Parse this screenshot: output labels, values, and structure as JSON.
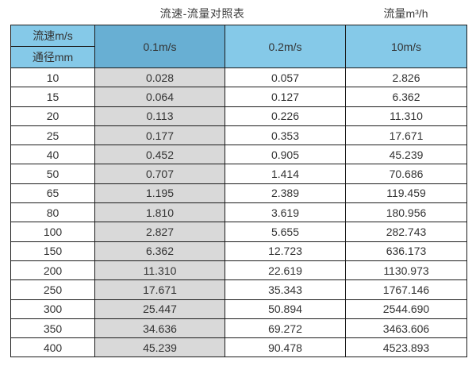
{
  "page": {
    "title": "流速-流量对照表",
    "unit_label": "流量m³/h"
  },
  "table": {
    "header": {
      "velocity_label": "流速m/s",
      "diameter_label": "通径mm",
      "columns": [
        "0.1m/s",
        "0.2m/s",
        "10m/s"
      ]
    },
    "rows": [
      [
        "10",
        "0.028",
        "0.057",
        "2.826"
      ],
      [
        "15",
        "0.064",
        "0.127",
        "6.362"
      ],
      [
        "20",
        "0.113",
        "0.226",
        "11.310"
      ],
      [
        "25",
        "0.177",
        "0.353",
        "17.671"
      ],
      [
        "40",
        "0.452",
        "0.905",
        "45.239"
      ],
      [
        "50",
        "0.707",
        "1.414",
        "70.686"
      ],
      [
        "65",
        "1.195",
        "2.389",
        "119.459"
      ],
      [
        "80",
        "1.810",
        "3.619",
        "180.956"
      ],
      [
        "100",
        "2.827",
        "5.655",
        "282.743"
      ],
      [
        "150",
        "6.362",
        "12.723",
        "636.173"
      ],
      [
        "200",
        "11.310",
        "22.619",
        "1130.973"
      ],
      [
        "250",
        "17.671",
        "35.343",
        "1767.146"
      ],
      [
        "300",
        "25.447",
        "50.894",
        "2544.690"
      ],
      [
        "350",
        "34.636",
        "69.272",
        "3463.606"
      ],
      [
        "400",
        "45.239",
        "90.478",
        "4523.893"
      ]
    ],
    "colors": {
      "header_blue": "#85c9e8",
      "header_dark_blue": "#68afd3",
      "highlight_gray": "#d9d9d9",
      "border": "#1c1c1c"
    }
  },
  "chart_data": {
    "type": "table",
    "title": "流速-流量对照表",
    "ylabel": "流量m³/h",
    "row_axis_label": "通径mm",
    "column_axis_label": "流速m/s",
    "columns": [
      "0.1m/s",
      "0.2m/s",
      "10m/s"
    ],
    "diameters_mm": [
      10,
      15,
      20,
      25,
      40,
      50,
      65,
      80,
      100,
      150,
      200,
      250,
      300,
      350,
      400
    ],
    "series": [
      {
        "name": "0.1m/s",
        "values": [
          0.028,
          0.064,
          0.113,
          0.177,
          0.452,
          0.707,
          1.195,
          1.81,
          2.827,
          6.362,
          11.31,
          17.671,
          25.447,
          34.636,
          45.239
        ]
      },
      {
        "name": "0.2m/s",
        "values": [
          0.057,
          0.127,
          0.226,
          0.353,
          0.905,
          1.414,
          2.389,
          3.619,
          5.655,
          12.723,
          22.619,
          35.343,
          50.894,
          69.272,
          90.478
        ]
      },
      {
        "name": "10m/s",
        "values": [
          2.826,
          6.362,
          11.31,
          17.671,
          45.239,
          70.686,
          119.459,
          180.956,
          282.743,
          636.173,
          1130.973,
          1767.146,
          2544.69,
          3463.606,
          4523.893
        ]
      }
    ]
  }
}
